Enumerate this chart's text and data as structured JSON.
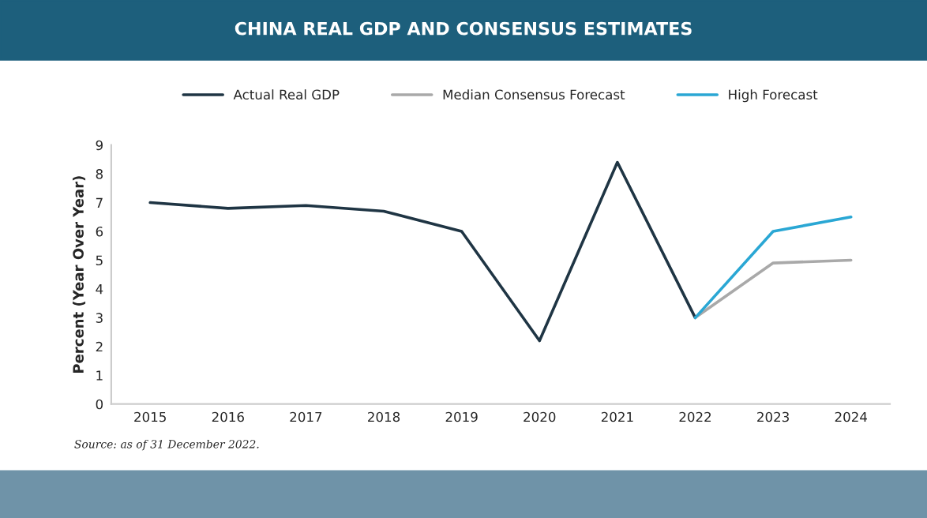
{
  "chart_data": {
    "type": "line",
    "title": "CHINA REAL GDP AND CONSENSUS ESTIMATES",
    "ylabel": "Percent (Year Over Year)",
    "categories": [
      "2015",
      "2016",
      "2017",
      "2018",
      "2019",
      "2020",
      "2021",
      "2022",
      "2023",
      "2024"
    ],
    "series": [
      {
        "name": "Actual Real GDP",
        "color": "#1f3544",
        "values": [
          7.0,
          6.8,
          6.9,
          6.7,
          6.0,
          2.2,
          8.4,
          3.0,
          null,
          null
        ]
      },
      {
        "name": "Median Consensus Forecast",
        "color": "#a9a9a9",
        "values": [
          null,
          null,
          null,
          null,
          null,
          null,
          null,
          3.0,
          4.9,
          5.0
        ]
      },
      {
        "name": "High Forecast",
        "color": "#2aa7d4",
        "values": [
          null,
          null,
          null,
          null,
          null,
          null,
          null,
          3.0,
          6.0,
          6.5
        ]
      }
    ],
    "ylim": [
      0,
      9
    ],
    "yticks": [
      0,
      1,
      2,
      3,
      4,
      5,
      6,
      7,
      8,
      9
    ],
    "grid": false,
    "legend": "top",
    "marker": "none",
    "line_style": "solid",
    "annotations": [
      "Source: as of 31 December 2022."
    ]
  }
}
